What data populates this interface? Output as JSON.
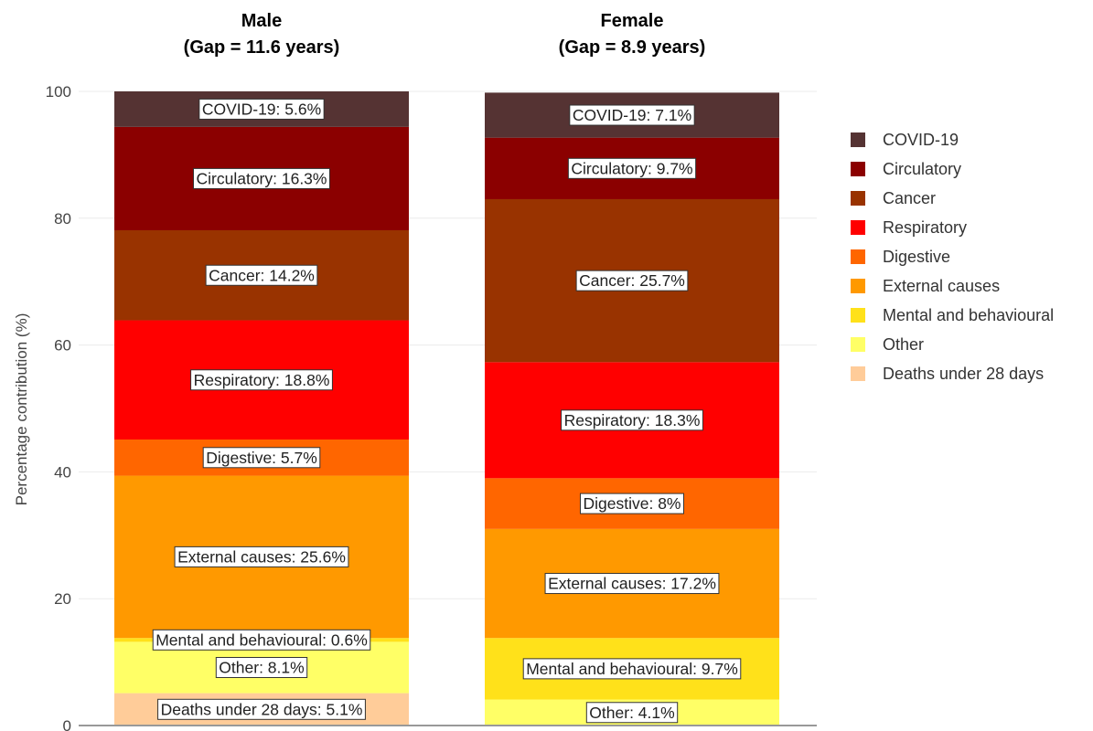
{
  "chart_data": {
    "type": "bar",
    "stacked": true,
    "ylabel": "Percentage contribution (%)",
    "ylim": [
      0,
      100
    ],
    "yticks": [
      0,
      20,
      40,
      60,
      80,
      100
    ],
    "grid": true,
    "legend_position": "right",
    "categories": [
      {
        "key": "male",
        "title_line1": "Male",
        "title_line2": "(Gap = 11.6 years)"
      },
      {
        "key": "female",
        "title_line1": "Female",
        "title_line2": "(Gap = 8.9 years)"
      }
    ],
    "series": [
      {
        "name": "Deaths under 28 days",
        "color": "#FFCC99",
        "values": [
          5.1,
          0
        ]
      },
      {
        "name": "Other",
        "color": "#FFFF66",
        "values": [
          8.1,
          4.1
        ]
      },
      {
        "name": "Mental and behavioural",
        "color": "#FFE11A",
        "values": [
          0.6,
          9.7
        ]
      },
      {
        "name": "External causes",
        "color": "#FF9900",
        "values": [
          25.6,
          17.2
        ]
      },
      {
        "name": "Digestive",
        "color": "#FF6600",
        "values": [
          5.7,
          8
        ]
      },
      {
        "name": "Respiratory",
        "color": "#FF0000",
        "values": [
          18.8,
          18.3
        ]
      },
      {
        "name": "Cancer",
        "color": "#993300",
        "values": [
          14.2,
          25.7
        ]
      },
      {
        "name": "Circulatory",
        "color": "#8B0000",
        "values": [
          16.3,
          9.7
        ]
      },
      {
        "name": "COVID-19",
        "color": "#553333",
        "values": [
          5.6,
          7.1
        ]
      }
    ],
    "segment_labels": [
      [
        "Deaths under 28 days: 5.1%",
        "Other: 8.1%",
        "Mental and behavioural: 0.6%",
        "External causes: 25.6%",
        "Digestive: 5.7%",
        "Respiratory: 18.8%",
        "Cancer: 14.2%",
        "Circulatory: 16.3%",
        "COVID-19: 5.6%"
      ],
      [
        "",
        "Other: 4.1%",
        "Mental and behavioural: 9.7%",
        "External causes: 17.2%",
        "Digestive: 8%",
        "Respiratory: 18.3%",
        "Cancer: 25.7%",
        "Circulatory: 9.7%",
        "COVID-19: 7.1%"
      ]
    ],
    "legend_order": [
      "COVID-19",
      "Circulatory",
      "Cancer",
      "Respiratory",
      "Digestive",
      "External causes",
      "Mental and behavioural",
      "Other",
      "Deaths under 28 days"
    ]
  }
}
